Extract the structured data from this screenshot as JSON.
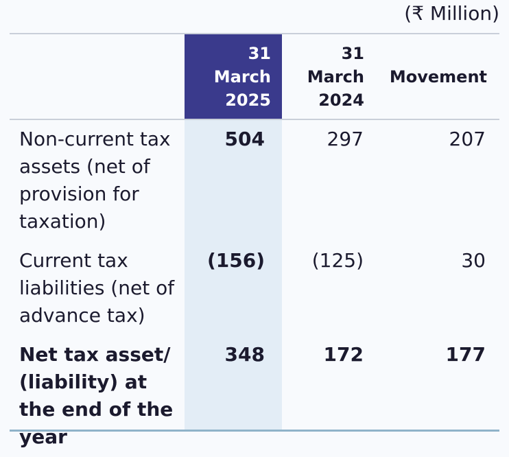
{
  "unit_note": "(₹ Million)",
  "columns": [
    {
      "label": "31 March 2025"
    },
    {
      "label": "31 March 2024"
    },
    {
      "label": "Movement"
    }
  ],
  "rows": [
    {
      "label": "Non-current tax assets (net of provision for taxation)",
      "v2025": "504",
      "v2024": "297",
      "movement": "207"
    },
    {
      "label": "Current tax liabilities (net of advance tax)",
      "v2025": "(156)",
      "v2024": "(125)",
      "movement": "30"
    },
    {
      "label": "Net tax asset/ (liability) at the end of the year",
      "v2025": "348",
      "v2024": "172",
      "movement": "177"
    }
  ],
  "colors": {
    "header_highlight": "#3a3a8c",
    "column_highlight": "#e3edf6",
    "bottom_rule": "#8fb3c9"
  }
}
